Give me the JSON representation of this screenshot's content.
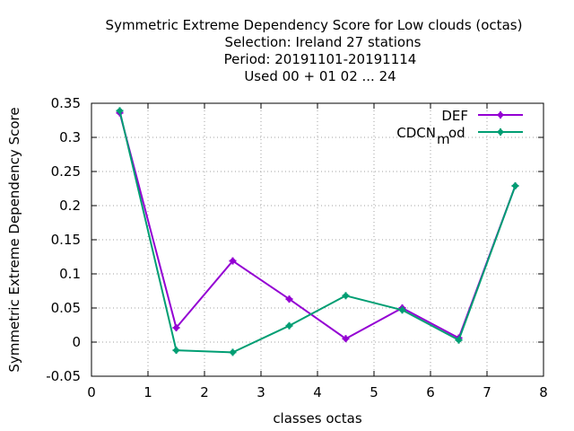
{
  "chart_data": {
    "type": "line",
    "title_lines": [
      "Symmetric Extreme Dependency Score  for Low clouds (octas)",
      "Selection: Ireland     27 stations",
      "Period: 20191101-20191114",
      "Used  00 + 01 02 ... 24"
    ],
    "xlabel": "classes octas",
    "ylabel": "Symmetric Extreme Dependency Score",
    "xlim": [
      0,
      8
    ],
    "ylim": [
      -0.05,
      0.35
    ],
    "xticks": [
      0,
      1,
      2,
      3,
      4,
      5,
      6,
      7,
      8
    ],
    "xtick_labels": [
      "0",
      "1",
      "2",
      "3",
      "4",
      "5",
      "6",
      "7",
      "8"
    ],
    "yticks": [
      -0.05,
      0,
      0.05,
      0.1,
      0.15,
      0.2,
      0.25,
      0.3,
      0.35
    ],
    "ytick_labels": [
      "-0.05",
      "0",
      "0.05",
      "0.1",
      "0.15",
      "0.2",
      "0.25",
      "0.3",
      "0.35"
    ],
    "grid": true,
    "legend_position": "top-right",
    "series": [
      {
        "name": "DEF",
        "color": "#9400d3",
        "x": [
          0.5,
          1.5,
          2.5,
          3.5,
          4.5,
          5.5,
          6.5,
          7.5
        ],
        "values": [
          0.336,
          0.021,
          0.119,
          0.063,
          0.005,
          0.05,
          0.006,
          0.229
        ]
      },
      {
        "name": "CDCN",
        "name_subscript": "m",
        "name_suffix": "od",
        "color": "#009e73",
        "x": [
          0.5,
          1.5,
          2.5,
          3.5,
          4.5,
          5.5,
          6.5,
          7.5
        ],
        "values": [
          0.339,
          -0.012,
          -0.015,
          0.024,
          0.068,
          0.047,
          0.003,
          0.229
        ]
      }
    ]
  }
}
